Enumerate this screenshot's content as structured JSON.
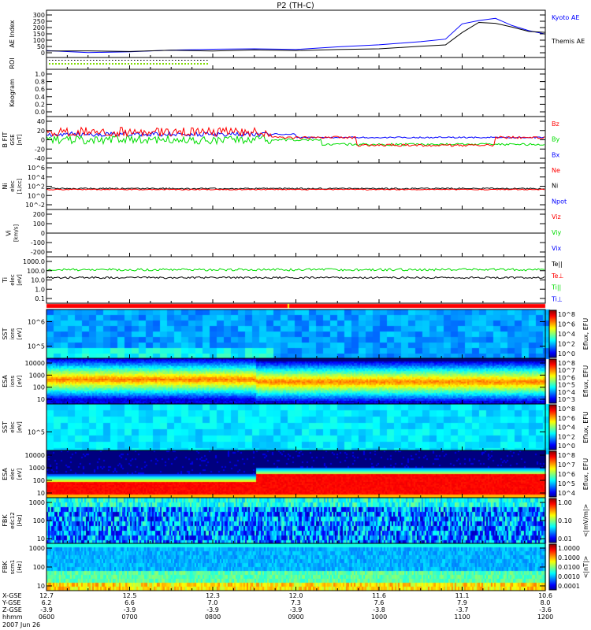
{
  "title": "P2 (TH-C)",
  "chart_data": {
    "type": "line",
    "title": "P2 (TH-C)",
    "x_time_labels": [
      "0600",
      "0700",
      "0800",
      "0900",
      "1000",
      "1100",
      "1200"
    ],
    "date": "2007 Jun 26",
    "ephemeris": [
      {
        "label": "X-GSE",
        "values": [
          "12.7",
          "12.5",
          "12.3",
          "12.0",
          "11.6",
          "11.1",
          "10.6"
        ]
      },
      {
        "label": "Y-GSE",
        "values": [
          "6.2",
          "6.6",
          "7.0",
          "7.3",
          "7.6",
          "7.9",
          "8.0"
        ]
      },
      {
        "label": "Z-GSE",
        "values": [
          "-3.9",
          "-3.9",
          "-3.9",
          "-3.9",
          "-3.8",
          "-3.7",
          "-3.6"
        ]
      },
      {
        "label": "hhmm",
        "values": [
          "0600",
          "0700",
          "0800",
          "0900",
          "1000",
          "1100",
          "1200"
        ]
      }
    ],
    "panels": [
      {
        "id": "ae",
        "ylabel": [
          "AE Index"
        ],
        "ticks": [
          "300",
          "250",
          "200",
          "150",
          "100",
          "50",
          "0"
        ],
        "ylim": [
          0,
          300
        ],
        "legend": [
          {
            "text": "Kyoto AE",
            "color": "#0000ff"
          },
          {
            "text": "Themis AE",
            "color": "#000000"
          }
        ],
        "series": [
          {
            "name": "Kyoto AE",
            "color": "#0000ff",
            "hours": [
              6,
              6.5,
              7,
              7.5,
              8,
              8.5,
              9,
              9.5,
              10,
              10.5,
              10.8,
              11,
              11.2,
              11.4,
              11.6,
              11.8,
              12
            ],
            "values": [
              20,
              5,
              10,
              22,
              25,
              25,
              28,
              40,
              60,
              85,
              100,
              210,
              235,
              250,
              200,
              165,
              140
            ]
          },
          {
            "name": "Themis AE",
            "color": "#000000",
            "hours": [
              6,
              6.5,
              7,
              7.5,
              8,
              8.5,
              9,
              9.5,
              10,
              10.5,
              10.8,
              11,
              11.2,
              11.4,
              11.6,
              11.8,
              12
            ],
            "values": [
              12,
              10,
              10,
              15,
              15,
              18,
              18,
              25,
              30,
              45,
              60,
              150,
              225,
              215,
              185,
              160,
              150
            ]
          }
        ]
      },
      {
        "id": "roi",
        "ylabel": [
          "ROI"
        ],
        "ticks": [],
        "legend": []
      },
      {
        "id": "keogram",
        "ylabel": [
          "Keogram"
        ],
        "ticks": [
          "1.0",
          "0.8",
          "0.6",
          "0.4",
          "0.2",
          "0.0"
        ],
        "ylim": [
          0,
          1
        ],
        "legend": []
      },
      {
        "id": "bfit",
        "ylabel": [
          "B FIT",
          "GSE",
          "[nT]"
        ],
        "ticks": [
          "40",
          "20",
          "0",
          "-20",
          "-40"
        ],
        "ylim": [
          -40,
          40
        ],
        "legend": [
          {
            "text": "Bz",
            "color": "#ff0000"
          },
          {
            "text": "By",
            "color": "#00dd00"
          },
          {
            "text": "Bx",
            "color": "#0000ff"
          }
        ]
      },
      {
        "id": "ni",
        "ylabel": [
          "Ni",
          "elec",
          "[1/cc]"
        ],
        "ticks": [
          "10^6",
          "10^4",
          "10^2",
          "10^0",
          "10^-2"
        ],
        "legend": [
          {
            "text": "Ne",
            "color": "#ff0000"
          },
          {
            "text": "Ni",
            "color": "#000000"
          },
          {
            "text": "Npot",
            "color": "#0000ff"
          }
        ]
      },
      {
        "id": "vi",
        "ylabel": [
          "Vi",
          "[km/s]"
        ],
        "ticks": [
          "200",
          "100",
          "0",
          "-100",
          "-200"
        ],
        "ylim": [
          -250,
          250
        ],
        "legend": [
          {
            "text": "Viz",
            "color": "#ff0000"
          },
          {
            "text": "Viy",
            "color": "#00dd00"
          },
          {
            "text": "Vix",
            "color": "#0000ff"
          }
        ]
      },
      {
        "id": "ti",
        "ylabel": [
          "Ti",
          "elec",
          "[eV]"
        ],
        "ticks": [
          "1000.0",
          "100.0",
          "10.0",
          "1.0",
          "0.1"
        ],
        "legend": [
          {
            "text": "Te||",
            "color": "#000000"
          },
          {
            "text": "Te⊥",
            "color": "#ff0000"
          },
          {
            "text": "Ti||",
            "color": "#00dd00"
          },
          {
            "text": "Ti⊥",
            "color": "#0000ff"
          }
        ]
      },
      {
        "id": "sst_i",
        "ylabel": [
          "SST",
          "ions",
          "[eV]"
        ],
        "ticks": [
          "10^6",
          "10^5"
        ],
        "colorbar": {
          "label": "Eflux, EFU",
          "ticks": [
            "10^8",
            "10^6",
            "10^4",
            "10^2",
            "10^0"
          ]
        }
      },
      {
        "id": "esa_i",
        "ylabel": [
          "ESA",
          "ions",
          "[eV]"
        ],
        "ticks": [
          "10000",
          "1000",
          "100",
          "10"
        ],
        "colorbar": {
          "label": "Eflux, EFU",
          "ticks": [
            "10^8",
            "10^7",
            "10^6",
            "10^5",
            "10^4",
            "10^3"
          ]
        }
      },
      {
        "id": "sst_e",
        "ylabel": [
          "SST",
          "elec",
          "[eV]"
        ],
        "ticks": [
          "10^5"
        ],
        "colorbar": {
          "label": "Eflux, EFU",
          "ticks": [
            "10^8",
            "10^6",
            "10^4",
            "10^2",
            "10^0"
          ]
        }
      },
      {
        "id": "esa_e",
        "ylabel": [
          "ESA",
          "elec",
          "[eV]"
        ],
        "ticks": [
          "10000",
          "1000",
          "100",
          "10"
        ],
        "colorbar": {
          "label": "Eflux, EFU",
          "ticks": [
            "10^8",
            "10^7",
            "10^6",
            "10^5",
            "10^4"
          ]
        }
      },
      {
        "id": "fbk_e",
        "ylabel": [
          "FBK",
          "edc12",
          "[Hz]"
        ],
        "ticks": [
          "1000",
          "100",
          "10"
        ],
        "colorbar": {
          "label": "<|mV/m|>",
          "ticks": [
            "1.00",
            "0.10",
            "0.01"
          ]
        }
      },
      {
        "id": "fbk_b",
        "ylabel": [
          "FBK",
          "scm1",
          "[Hz]"
        ],
        "ticks": [
          "1000",
          "100",
          "10"
        ],
        "colorbar": {
          "label": "<|nT|>",
          "ticks": [
            "1.0000",
            "0.1000",
            "0.0100",
            "0.0010",
            "0.0001"
          ]
        }
      }
    ]
  }
}
